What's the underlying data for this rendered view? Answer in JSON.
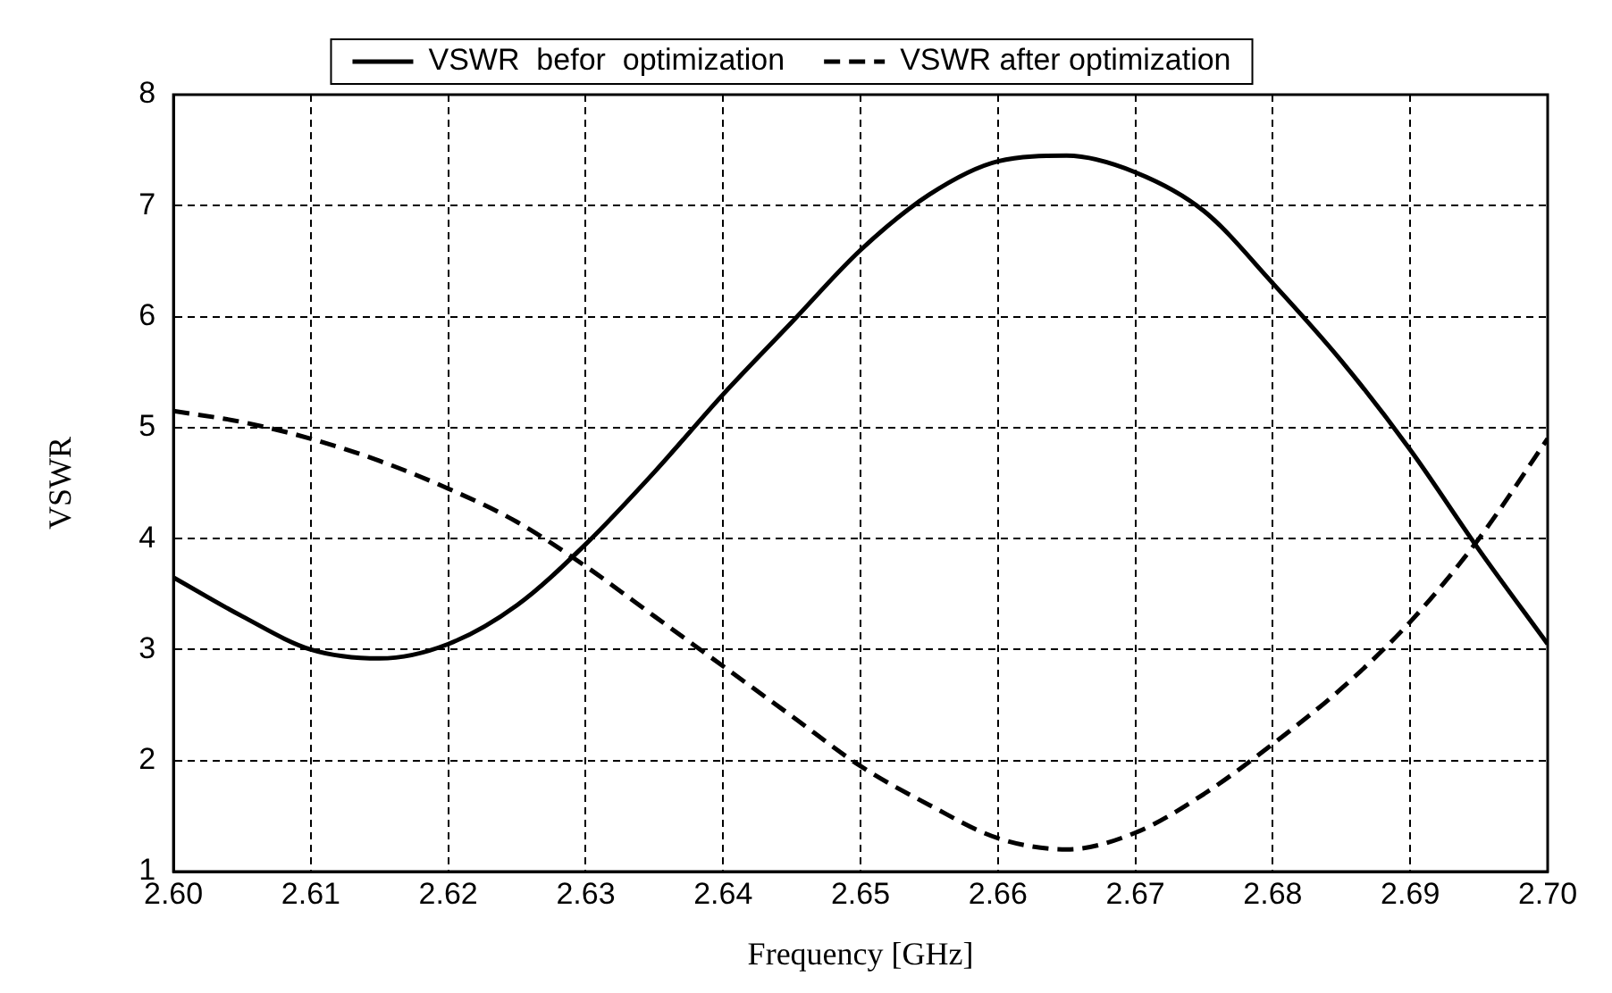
{
  "chart_data": {
    "type": "line",
    "xlabel": "Frequency [GHz]",
    "ylabel": "VSWR",
    "x": [
      2.6,
      2.605,
      2.61,
      2.615,
      2.62,
      2.625,
      2.63,
      2.635,
      2.64,
      2.645,
      2.65,
      2.655,
      2.66,
      2.665,
      2.67,
      2.675,
      2.68,
      2.685,
      2.69,
      2.695,
      2.7
    ],
    "series": [
      {
        "name": "VSWR  befor  optimization",
        "color": "#000000",
        "line_style": "solid",
        "values": [
          3.65,
          3.3,
          3.0,
          2.92,
          3.05,
          3.4,
          3.95,
          4.6,
          5.3,
          5.95,
          6.6,
          7.1,
          7.4,
          7.45,
          7.3,
          6.95,
          6.3,
          5.6,
          4.8,
          3.9,
          3.05
        ]
      },
      {
        "name": "VSWR after optimization",
        "color": "#000000",
        "line_style": "dashed",
        "values": [
          5.15,
          5.05,
          4.9,
          4.7,
          4.45,
          4.15,
          3.75,
          3.3,
          2.85,
          2.4,
          1.95,
          1.6,
          1.3,
          1.2,
          1.35,
          1.7,
          2.15,
          2.65,
          3.25,
          4.0,
          4.9
        ]
      }
    ],
    "xlim": [
      2.6,
      2.7
    ],
    "xticks": [
      {
        "value": 2.6,
        "label": "2.60"
      },
      {
        "value": 2.61,
        "label": "2.61"
      },
      {
        "value": 2.62,
        "label": "2.62"
      },
      {
        "value": 2.63,
        "label": "2.63"
      },
      {
        "value": 2.64,
        "label": "2.64"
      },
      {
        "value": 2.65,
        "label": "2.65"
      },
      {
        "value": 2.66,
        "label": "2.66"
      },
      {
        "value": 2.67,
        "label": "2.67"
      },
      {
        "value": 2.68,
        "label": "2.68"
      },
      {
        "value": 2.69,
        "label": "2.69"
      },
      {
        "value": 2.7,
        "label": "2.70"
      }
    ],
    "ylim": [
      1,
      8
    ],
    "yticks": [
      1,
      2,
      3,
      4,
      5,
      6,
      7,
      8
    ],
    "grid": true,
    "legend": "top",
    "marker": "none"
  }
}
